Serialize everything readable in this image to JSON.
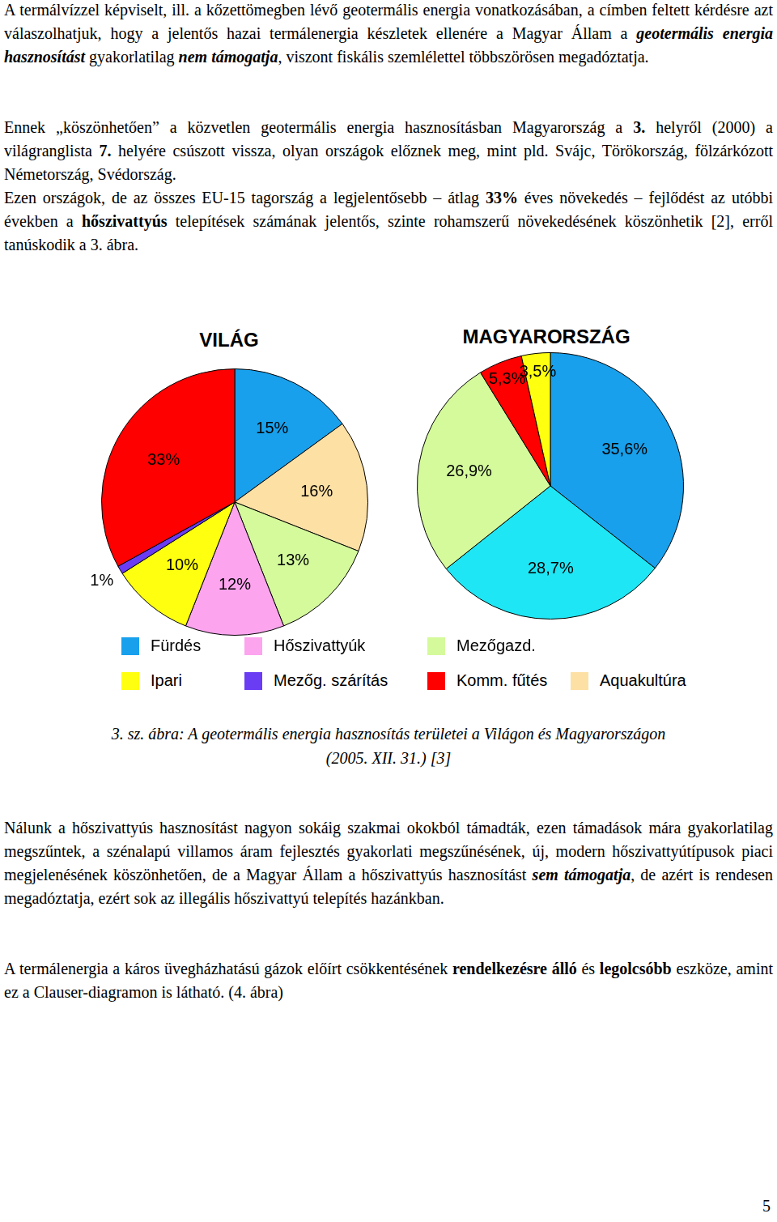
{
  "paragraphs_top": [
    [
      {
        "text": "A termálvízzel képviselt, ill. a kőzettömegben lévő geotermális energia vonatkozásában, a címben feltett kérdésre azt válaszolhatjuk, hogy a jelentős hazai termálenergia készletek ellenére a Magyar Állam a "
      },
      {
        "text": "geotermális energia hasznosítást",
        "bold": true,
        "italic": true
      },
      {
        "text": " gyakorlatilag "
      },
      {
        "text": "nem támogatja",
        "bold": true,
        "italic": true
      },
      {
        "text": ", viszont fiskális szemlélettel többszörösen megadóztatja."
      }
    ],
    [
      {
        "text": "Ennek „köszönhetően” a közvetlen geotermális energia hasznosításban Magyarország a "
      },
      {
        "text": "3.",
        "bold": true
      },
      {
        "text": " helyről (2000) a világranglista "
      },
      {
        "text": "7.",
        "bold": true
      },
      {
        "text": " helyére csúszott vissza, olyan országok előznek meg, mint pld. Svájc, Törökország, fölzárkózott Németország, Svédország."
      }
    ],
    [
      {
        "text": "Ezen országok, de az összes EU-15 tagország a legjelentősebb – átlag "
      },
      {
        "text": "33%",
        "bold": true
      },
      {
        "text": " éves növekedés – fejlődést az utóbbi években a "
      },
      {
        "text": "hőszivattyús",
        "bold": true
      },
      {
        "text": " telepítések számának jelentős, szinte rohamszerű növekedésének köszönhetik [2], erről tanúskodik a 3. ábra."
      }
    ]
  ],
  "chart_data": [
    {
      "type": "pie",
      "title": "VILÁG",
      "categories": [
        "Fürdés",
        "Aquakultúra",
        "Mezőgazd.",
        "Hőszivattyúk",
        "Ipari",
        "Mezőg. szárítás",
        "Komm. fűtés"
      ],
      "values": [
        15,
        16,
        13,
        12,
        10,
        1,
        33
      ],
      "value_labels": [
        "15%",
        "16%",
        "13%",
        "12%",
        "10%",
        "1%",
        "33%"
      ],
      "colors": [
        "#18a0ec",
        "#fde0a4",
        "#d4fa9c",
        "#fca4ee",
        "#ffff10",
        "#6a3cf4",
        "#ff0000"
      ],
      "data_labels": true
    },
    {
      "type": "pie",
      "title": "MAGYARORSZÁG",
      "categories": [
        "Fürdés",
        null,
        "Mezőgazd.",
        "Komm. fűtés",
        "Ipari"
      ],
      "values": [
        35.6,
        28.7,
        26.9,
        5.3,
        3.5
      ],
      "value_labels": [
        "35,6%",
        "28,7%",
        "26,9%",
        "5,3%",
        "3,5%"
      ],
      "colors": [
        "#18a0ec",
        "#1ee6f4",
        "#d4fa9c",
        "#ff0000",
        "#ffff10"
      ],
      "data_labels": true
    }
  ],
  "legend_entries": [
    {
      "name": "Fürdés",
      "color": "#18a0ec"
    },
    {
      "name": "Hőszivattyúk",
      "color": "#fca4ee"
    },
    {
      "name": "Mezőgazd.",
      "color": "#d4fa9c"
    },
    {
      "name": "Ipari",
      "color": "#ffff10"
    },
    {
      "name": "Mezőg. szárítás",
      "color": "#6a3cf4"
    },
    {
      "name": "Komm. fűtés",
      "color": "#ff0000"
    },
    {
      "name": "Aquakultúra",
      "color": "#fde0a4"
    }
  ],
  "caption_lines": [
    "3. sz. ábra: A geotermális energia hasznosítás területei a Világon és Magyarországon",
    "(2005. XII. 31.) [3]"
  ],
  "paragraphs_bottom": [
    [
      {
        "text": "Nálunk a hőszivattyús hasznosítást nagyon sokáig szakmai okokból támadták, ezen támadások mára gyakorlatilag megszűntek, a szénalapú villamos áram fejlesztés gyakorlati megszűnésének, új, modern hőszivattyútípusok piaci megjelenésének köszönhetően, de a Magyar Állam a hőszivattyús hasznosítást "
      },
      {
        "text": "sem támogatja",
        "bold": true,
        "italic": true
      },
      {
        "text": ", de azért is rendesen megadóztatja, ezért sok az illegális hőszivattyú telepítés hazánkban."
      }
    ],
    [
      {
        "text": "A termálenergia a káros üvegházhatású gázok előírt csökkentésének "
      },
      {
        "text": "rendelkezésre álló",
        "bold": true
      },
      {
        "text": " és "
      },
      {
        "text": "legolcsóbb",
        "bold": true
      },
      {
        "text": " eszköze, amint ez a Clauser-diagramon is látható. (4. ábra)"
      }
    ]
  ],
  "page_number": "5"
}
